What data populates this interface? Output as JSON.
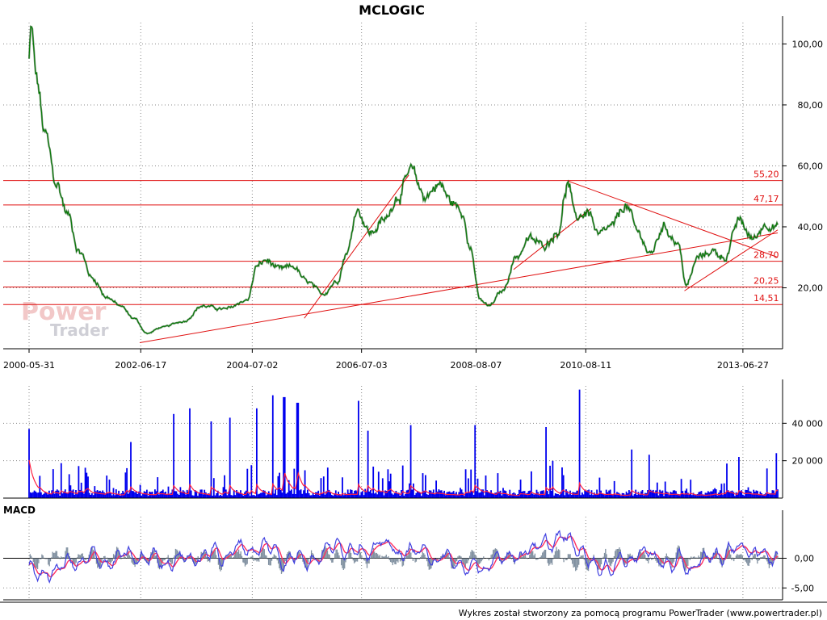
{
  "title": "MCLOGIC",
  "footer": "Wykres został stworzony za pomocą programu PowerTrader (www.powertrader.pl)",
  "watermark": {
    "line1": "Power",
    "line2": "Trader"
  },
  "macd_label": "MACD",
  "colors": {
    "price": "#007a00",
    "levels": "#e01010",
    "volume": "#0000ee",
    "volume_ma": "#ff2040",
    "macd": "#4040e0",
    "signal": "#ff3060",
    "histogram": "#8090a0"
  },
  "chart_data": [
    {
      "type": "line",
      "name": "price",
      "title": "MCLOGIC",
      "x_ticks": [
        "2000-05-31",
        "2002-06-17",
        "2004-07-02",
        "2006-07-03",
        "2008-08-07",
        "2010-08-11",
        "2013-06-27"
      ],
      "y_ticks": [
        "20,00",
        "40,00",
        "60,00",
        "80,00",
        "100,00"
      ],
      "ylim": [
        0,
        107
      ],
      "xlim": [
        "2000-05-31",
        "2014-02-15"
      ],
      "grid": true,
      "keypoints": [
        {
          "date": "2000-05-31",
          "value": 95
        },
        {
          "date": "2000-06-15",
          "value": 105
        },
        {
          "date": "2000-07-20",
          "value": 88
        },
        {
          "date": "2000-09-15",
          "value": 70
        },
        {
          "date": "2000-12-01",
          "value": 54
        },
        {
          "date": "2001-02-15",
          "value": 44
        },
        {
          "date": "2001-05-01",
          "value": 32
        },
        {
          "date": "2001-08-01",
          "value": 23
        },
        {
          "date": "2001-11-01",
          "value": 17
        },
        {
          "date": "2002-02-01",
          "value": 14
        },
        {
          "date": "2002-05-01",
          "value": 10
        },
        {
          "date": "2002-08-01",
          "value": 5
        },
        {
          "date": "2002-11-01",
          "value": 7
        },
        {
          "date": "2003-04-01",
          "value": 9
        },
        {
          "date": "2003-08-01",
          "value": 14
        },
        {
          "date": "2004-01-01",
          "value": 13
        },
        {
          "date": "2004-06-01",
          "value": 16
        },
        {
          "date": "2004-08-01",
          "value": 27
        },
        {
          "date": "2004-10-01",
          "value": 29
        },
        {
          "date": "2005-01-01",
          "value": 26
        },
        {
          "date": "2005-04-01",
          "value": 27
        },
        {
          "date": "2005-07-01",
          "value": 22
        },
        {
          "date": "2005-10-15",
          "value": 18
        },
        {
          "date": "2006-01-15",
          "value": 22
        },
        {
          "date": "2006-04-01",
          "value": 32
        },
        {
          "date": "2006-06-01",
          "value": 46
        },
        {
          "date": "2006-09-01",
          "value": 38
        },
        {
          "date": "2006-12-01",
          "value": 42
        },
        {
          "date": "2007-03-01",
          "value": 50
        },
        {
          "date": "2007-06-01",
          "value": 58
        },
        {
          "date": "2007-09-01",
          "value": 50
        },
        {
          "date": "2007-12-01",
          "value": 54
        },
        {
          "date": "2008-03-01",
          "value": 48
        },
        {
          "date": "2008-05-15",
          "value": 44
        },
        {
          "date": "2008-07-01",
          "value": 33
        },
        {
          "date": "2008-09-01",
          "value": 16
        },
        {
          "date": "2008-11-01",
          "value": 14
        },
        {
          "date": "2009-02-01",
          "value": 19
        },
        {
          "date": "2009-05-01",
          "value": 30
        },
        {
          "date": "2009-08-01",
          "value": 36
        },
        {
          "date": "2009-11-01",
          "value": 34
        },
        {
          "date": "2010-02-01",
          "value": 38
        },
        {
          "date": "2010-04-15",
          "value": 54
        },
        {
          "date": "2010-06-01",
          "value": 43
        },
        {
          "date": "2010-09-01",
          "value": 45
        },
        {
          "date": "2010-11-01",
          "value": 37
        },
        {
          "date": "2011-02-01",
          "value": 40
        },
        {
          "date": "2011-05-01",
          "value": 47
        },
        {
          "date": "2011-08-01",
          "value": 38
        },
        {
          "date": "2011-10-15",
          "value": 31
        },
        {
          "date": "2012-01-15",
          "value": 40
        },
        {
          "date": "2012-04-15",
          "value": 35
        },
        {
          "date": "2012-06-15",
          "value": 21
        },
        {
          "date": "2012-09-01",
          "value": 30
        },
        {
          "date": "2012-12-01",
          "value": 32
        },
        {
          "date": "2013-03-01",
          "value": 30
        },
        {
          "date": "2013-06-01",
          "value": 42
        },
        {
          "date": "2013-09-01",
          "value": 36
        },
        {
          "date": "2013-12-01",
          "value": 41
        },
        {
          "date": "2014-02-15",
          "value": 40
        }
      ],
      "horizontal_levels": [
        {
          "value": 55.2,
          "label": "55,20"
        },
        {
          "value": 47.17,
          "label": "47,17"
        },
        {
          "value": 28.7,
          "label": "28,70"
        },
        {
          "value": 20.25,
          "label": "20,25"
        },
        {
          "value": 14.51,
          "label": "14,51"
        }
      ],
      "trend_lines": [
        {
          "from": {
            "date": "2002-06-10",
            "value": 2
          },
          "to": {
            "date": "2014-02-15",
            "value": 38
          }
        },
        {
          "from": {
            "date": "2005-06-15",
            "value": 10
          },
          "to": {
            "date": "2007-05-15",
            "value": 57
          }
        },
        {
          "from": {
            "date": "2009-04-15",
            "value": 26
          },
          "to": {
            "date": "2010-09-15",
            "value": 46
          }
        },
        {
          "from": {
            "date": "2010-04-15",
            "value": 55
          },
          "to": {
            "date": "2014-02-15",
            "value": 30
          }
        },
        {
          "from": {
            "date": "2012-06-01",
            "value": 19
          },
          "to": {
            "date": "2014-02-15",
            "value": 39
          }
        }
      ]
    },
    {
      "type": "bar",
      "name": "volume",
      "y_ticks": [
        "20 000",
        "40 000"
      ],
      "ylim": [
        0,
        60000
      ],
      "spikes": [
        {
          "date": "2000-05-31",
          "value": 37000
        },
        {
          "date": "2002-04-15",
          "value": 30000
        },
        {
          "date": "2003-01-20",
          "value": 45000
        },
        {
          "date": "2003-05-15",
          "value": 48000
        },
        {
          "date": "2003-10-01",
          "value": 41000
        },
        {
          "date": "2004-02-01",
          "value": 43000
        },
        {
          "date": "2004-08-01",
          "value": 48000
        },
        {
          "date": "2004-11-15",
          "value": 55000
        },
        {
          "date": "2005-02-01",
          "value": 54000
        },
        {
          "date": "2005-05-01",
          "value": 51000
        },
        {
          "date": "2006-06-15",
          "value": 52000
        },
        {
          "date": "2006-08-15",
          "value": 36000
        },
        {
          "date": "2007-06-01",
          "value": 39000
        },
        {
          "date": "2008-08-01",
          "value": 39000
        },
        {
          "date": "2009-11-15",
          "value": 38000
        },
        {
          "date": "2010-07-01",
          "value": 58000
        },
        {
          "date": "2011-06-15",
          "value": 26000
        },
        {
          "date": "2013-06-01",
          "value": 22000
        }
      ]
    },
    {
      "type": "line",
      "name": "macd",
      "title": "MACD",
      "y_ticks": [
        "-5,00",
        "0,00"
      ],
      "ylim": [
        -7,
        7
      ],
      "series": [
        {
          "name": "",
          "keypoints": [
            {
              "date": "2000-05-31",
              "value": -2
            },
            {
              "date": "2000-07-15",
              "value": -5.8
            },
            {
              "date": "2000-11-01",
              "value": -3.5
            },
            {
              "date": "2001-04-01",
              "value": -1.5
            },
            {
              "date": "2002-01-01",
              "value": -0.5
            },
            {
              "date": "2003-06-01",
              "value": 0.3
            },
            {
              "date": "2004-08-01",
              "value": 3.5
            },
            {
              "date": "2005-03-01",
              "value": 0.5
            },
            {
              "date": "2006-06-01",
              "value": 4.2
            },
            {
              "date": "2007-06-01",
              "value": 2
            },
            {
              "date": "2008-09-01",
              "value": -3.5
            },
            {
              "date": "2009-07-01",
              "value": 3
            },
            {
              "date": "2010-04-15",
              "value": 5
            },
            {
              "date": "2010-12-01",
              "value": -2.2
            },
            {
              "date": "2011-08-01",
              "value": 1.5
            },
            {
              "date": "2012-06-15",
              "value": -3
            },
            {
              "date": "2013-06-01",
              "value": 3.2
            },
            {
              "date": "2014-02-15",
              "value": 0
            }
          ]
        }
      ]
    }
  ]
}
